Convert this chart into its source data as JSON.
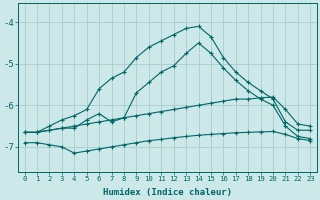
{
  "background_color": "#cce8e8",
  "grid_color": "#aacccc",
  "line_color": "#006666",
  "xlabel": "Humidex (Indice chaleur)",
  "xlim": [
    -0.5,
    23.5
  ],
  "ylim": [
    -7.6,
    -3.55
  ],
  "yticks": [
    -7,
    -6,
    -5,
    -4
  ],
  "xticks": [
    0,
    1,
    2,
    3,
    4,
    5,
    6,
    7,
    8,
    9,
    10,
    11,
    12,
    13,
    14,
    15,
    16,
    17,
    18,
    19,
    20,
    21,
    22,
    23
  ],
  "series": [
    {
      "x": [
        0,
        1,
        2,
        3,
        4,
        5,
        6,
        7,
        8,
        9,
        10,
        11,
        12,
        13,
        14,
        15,
        16,
        17,
        18,
        19,
        20,
        21,
        22,
        23
      ],
      "y": [
        -6.65,
        -6.65,
        -6.5,
        -6.35,
        -6.25,
        -6.1,
        -5.6,
        -5.35,
        -5.2,
        -4.85,
        -4.6,
        -4.45,
        -4.3,
        -4.15,
        -4.1,
        -4.35,
        -4.85,
        -5.2,
        -5.45,
        -5.65,
        -5.85,
        -6.4,
        -6.6,
        -6.6
      ]
    },
    {
      "x": [
        0,
        1,
        2,
        3,
        4,
        5,
        6,
        7,
        8,
        9,
        10,
        11,
        12,
        13,
        14,
        15,
        16,
        17,
        18,
        19,
        20,
        21,
        22,
        23
      ],
      "y": [
        -6.65,
        -6.65,
        -6.6,
        -6.55,
        -6.55,
        -6.35,
        -6.2,
        -6.4,
        -6.3,
        -5.7,
        -5.45,
        -5.2,
        -5.05,
        -4.75,
        -4.5,
        -4.75,
        -5.1,
        -5.4,
        -5.65,
        -5.85,
        -6.0,
        -6.5,
        -6.75,
        -6.8
      ]
    },
    {
      "x": [
        0,
        1,
        2,
        3,
        4,
        5,
        6,
        7,
        8,
        9,
        10,
        11,
        12,
        13,
        14,
        15,
        16,
        17,
        18,
        19,
        20,
        21,
        22,
        23
      ],
      "y": [
        -6.65,
        -6.65,
        -6.6,
        -6.55,
        -6.5,
        -6.45,
        -6.4,
        -6.35,
        -6.3,
        -6.25,
        -6.2,
        -6.15,
        -6.1,
        -6.05,
        -6.0,
        -5.95,
        -5.9,
        -5.85,
        -5.85,
        -5.82,
        -5.8,
        -6.1,
        -6.45,
        -6.5
      ]
    },
    {
      "x": [
        0,
        1,
        2,
        3,
        4,
        5,
        6,
        7,
        8,
        9,
        10,
        11,
        12,
        13,
        14,
        15,
        16,
        17,
        18,
        19,
        20,
        21,
        22,
        23
      ],
      "y": [
        -6.9,
        -6.9,
        -6.95,
        -7.0,
        -7.15,
        -7.1,
        -7.05,
        -7.0,
        -6.95,
        -6.9,
        -6.85,
        -6.82,
        -6.78,
        -6.75,
        -6.72,
        -6.7,
        -6.68,
        -6.66,
        -6.65,
        -6.64,
        -6.63,
        -6.7,
        -6.8,
        -6.85
      ]
    }
  ]
}
